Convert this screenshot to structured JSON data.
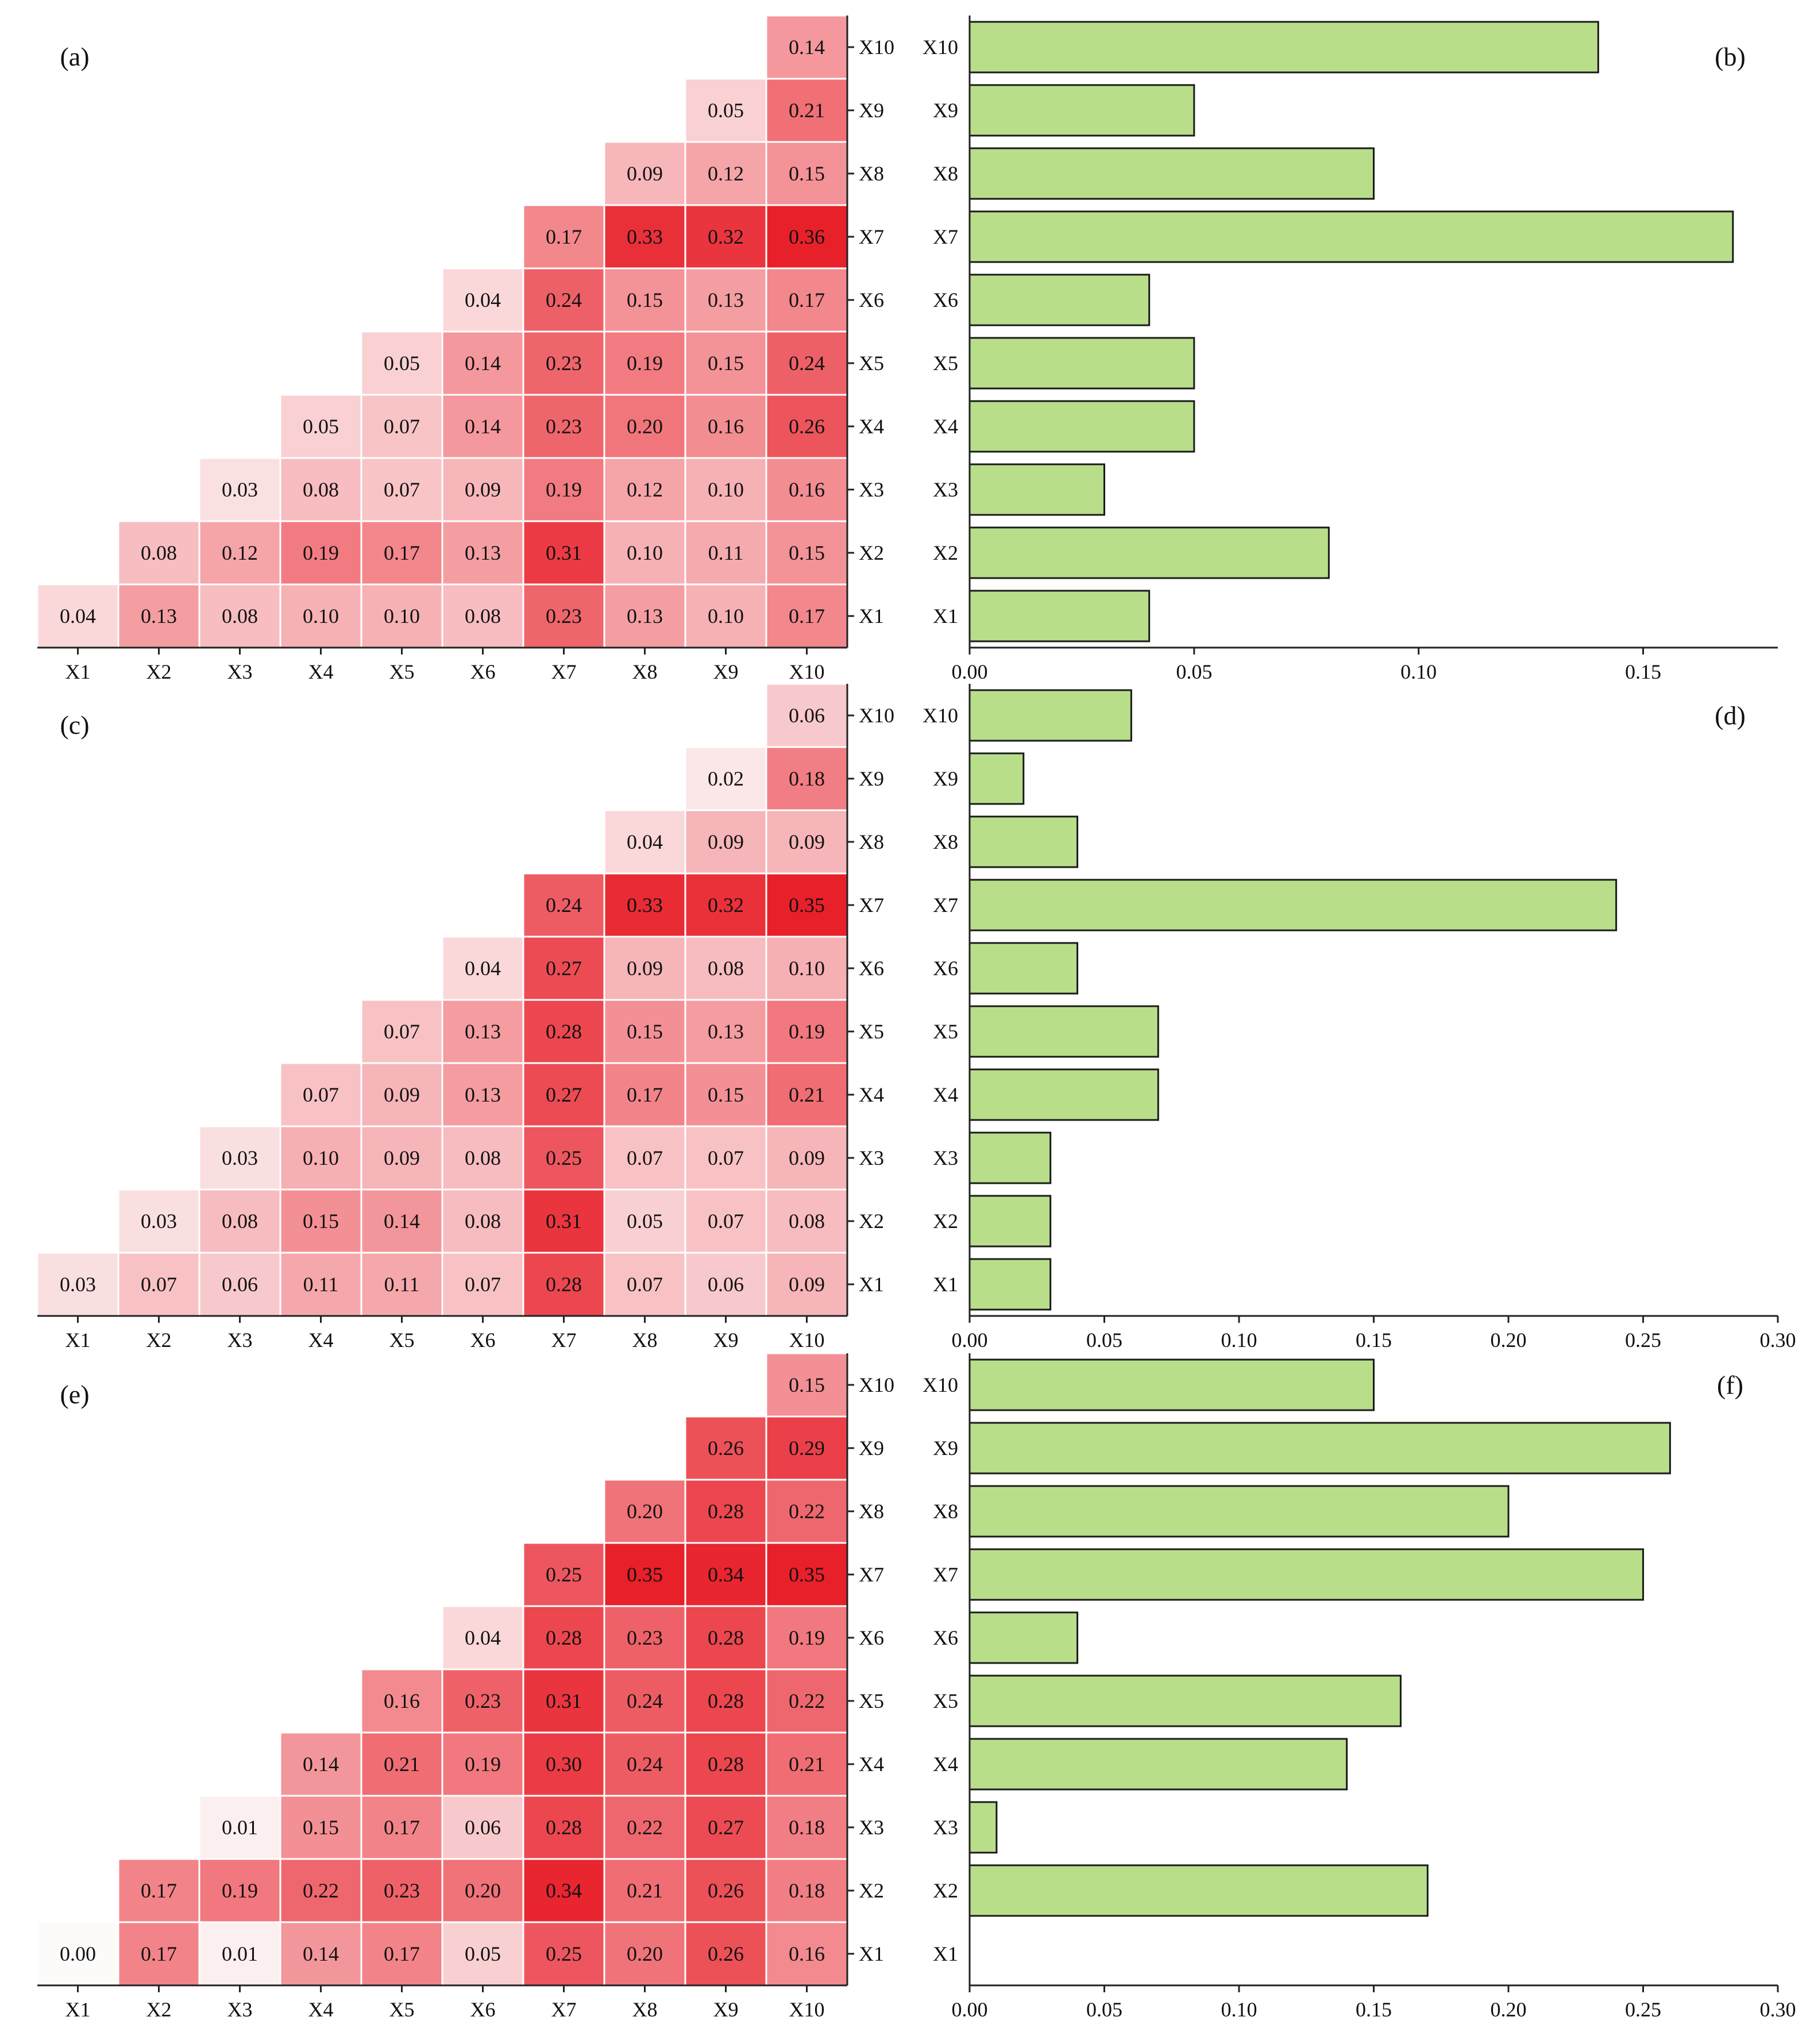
{
  "colors": {
    "heat_low": "#fdfafa",
    "heat_high": "#e8202a",
    "bar_fill": "#b8de8a",
    "bar_stroke": "#1a1a1a",
    "axis": "#222222",
    "cell_border": "#ffffff"
  },
  "chart_data": [
    {
      "type": "heatmap",
      "panel_label": "(a)",
      "x_categories": [
        "X1",
        "X2",
        "X3",
        "X4",
        "X5",
        "X6",
        "X7",
        "X8",
        "X9",
        "X10"
      ],
      "y_categories": [
        "X1",
        "X2",
        "X3",
        "X4",
        "X5",
        "X6",
        "X7",
        "X8",
        "X9",
        "X10"
      ],
      "matrix_note": "rows listed from X1 (bottom) to X10 (top); null = empty cell",
      "values": [
        [
          0.04,
          0.13,
          0.08,
          0.1,
          0.1,
          0.08,
          0.23,
          0.13,
          0.1,
          0.17
        ],
        [
          null,
          0.08,
          0.12,
          0.19,
          0.17,
          0.13,
          0.31,
          0.1,
          0.11,
          0.15
        ],
        [
          null,
          null,
          0.03,
          0.08,
          0.07,
          0.09,
          0.19,
          0.12,
          0.1,
          0.16
        ],
        [
          null,
          null,
          null,
          0.05,
          0.07,
          0.14,
          0.23,
          0.2,
          0.16,
          0.26
        ],
        [
          null,
          null,
          null,
          null,
          0.05,
          0.14,
          0.23,
          0.19,
          0.15,
          0.24
        ],
        [
          null,
          null,
          null,
          null,
          null,
          0.04,
          0.24,
          0.15,
          0.13,
          0.17
        ],
        [
          null,
          null,
          null,
          null,
          null,
          null,
          0.17,
          0.33,
          0.32,
          0.36
        ],
        [
          null,
          null,
          null,
          null,
          null,
          null,
          null,
          0.09,
          0.12,
          0.15
        ],
        [
          null,
          null,
          null,
          null,
          null,
          null,
          null,
          null,
          0.05,
          0.21
        ],
        [
          null,
          null,
          null,
          null,
          null,
          null,
          null,
          null,
          null,
          0.14
        ]
      ],
      "color_range": [
        0.0,
        0.36
      ]
    },
    {
      "type": "bar",
      "orientation": "horizontal",
      "panel_label": "(b)",
      "categories": [
        "X1",
        "X2",
        "X3",
        "X4",
        "X5",
        "X6",
        "X7",
        "X8",
        "X9",
        "X10"
      ],
      "values": [
        0.04,
        0.08,
        0.03,
        0.05,
        0.05,
        0.04,
        0.17,
        0.09,
        0.05,
        0.14
      ],
      "xlim": [
        0.0,
        0.18
      ],
      "x_ticks": [
        "0.00",
        "0.05",
        "0.10",
        "0.15"
      ],
      "x_tick_values": [
        0.0,
        0.05,
        0.1,
        0.15
      ]
    },
    {
      "type": "heatmap",
      "panel_label": "(c)",
      "x_categories": [
        "X1",
        "X2",
        "X3",
        "X4",
        "X5",
        "X6",
        "X7",
        "X8",
        "X9",
        "X10"
      ],
      "y_categories": [
        "X1",
        "X2",
        "X3",
        "X4",
        "X5",
        "X6",
        "X7",
        "X8",
        "X9",
        "X10"
      ],
      "matrix_note": "rows listed from X1 (bottom) to X10 (top); null = empty cell",
      "values": [
        [
          0.03,
          0.07,
          0.06,
          0.11,
          0.11,
          0.07,
          0.28,
          0.07,
          0.06,
          0.09
        ],
        [
          null,
          0.03,
          0.08,
          0.15,
          0.14,
          0.08,
          0.31,
          0.05,
          0.07,
          0.08
        ],
        [
          null,
          null,
          0.03,
          0.1,
          0.09,
          0.08,
          0.25,
          0.07,
          0.07,
          0.09
        ],
        [
          null,
          null,
          null,
          0.07,
          0.09,
          0.13,
          0.27,
          0.17,
          0.15,
          0.21
        ],
        [
          null,
          null,
          null,
          null,
          0.07,
          0.13,
          0.28,
          0.15,
          0.13,
          0.19
        ],
        [
          null,
          null,
          null,
          null,
          null,
          0.04,
          0.27,
          0.09,
          0.08,
          0.1
        ],
        [
          null,
          null,
          null,
          null,
          null,
          null,
          0.24,
          0.33,
          0.32,
          0.35
        ],
        [
          null,
          null,
          null,
          null,
          null,
          null,
          null,
          0.04,
          0.09,
          0.09
        ],
        [
          null,
          null,
          null,
          null,
          null,
          null,
          null,
          null,
          0.02,
          0.18
        ],
        [
          null,
          null,
          null,
          null,
          null,
          null,
          null,
          null,
          null,
          0.06
        ]
      ],
      "color_range": [
        0.0,
        0.35
      ]
    },
    {
      "type": "bar",
      "orientation": "horizontal",
      "panel_label": "(d)",
      "categories": [
        "X1",
        "X2",
        "X3",
        "X4",
        "X5",
        "X6",
        "X7",
        "X8",
        "X9",
        "X10"
      ],
      "values": [
        0.03,
        0.03,
        0.03,
        0.07,
        0.07,
        0.04,
        0.24,
        0.04,
        0.02,
        0.06
      ],
      "xlim": [
        0.0,
        0.3
      ],
      "x_ticks": [
        "0.00",
        "0.05",
        "0.10",
        "0.15",
        "0.20",
        "0.25",
        "0.30"
      ],
      "x_tick_values": [
        0.0,
        0.05,
        0.1,
        0.15,
        0.2,
        0.25,
        0.3
      ]
    },
    {
      "type": "heatmap",
      "panel_label": "(e)",
      "x_categories": [
        "X1",
        "X2",
        "X3",
        "X4",
        "X5",
        "X6",
        "X7",
        "X8",
        "X9",
        "X10"
      ],
      "y_categories": [
        "X1",
        "X2",
        "X3",
        "X4",
        "X5",
        "X6",
        "X7",
        "X8",
        "X9",
        "X10"
      ],
      "matrix_note": "rows listed from X1 (bottom) to X10 (top); null = empty cell",
      "values": [
        [
          0.0,
          0.17,
          0.01,
          0.14,
          0.17,
          0.05,
          0.25,
          0.2,
          0.26,
          0.16
        ],
        [
          null,
          0.17,
          0.19,
          0.22,
          0.23,
          0.2,
          0.34,
          0.21,
          0.26,
          0.18
        ],
        [
          null,
          null,
          0.01,
          0.15,
          0.17,
          0.06,
          0.28,
          0.22,
          0.27,
          0.18
        ],
        [
          null,
          null,
          null,
          0.14,
          0.21,
          0.19,
          0.3,
          0.24,
          0.28,
          0.21
        ],
        [
          null,
          null,
          null,
          null,
          0.16,
          0.23,
          0.31,
          0.24,
          0.28,
          0.22
        ],
        [
          null,
          null,
          null,
          null,
          null,
          0.04,
          0.28,
          0.23,
          0.28,
          0.19
        ],
        [
          null,
          null,
          null,
          null,
          null,
          null,
          0.25,
          0.35,
          0.34,
          0.35
        ],
        [
          null,
          null,
          null,
          null,
          null,
          null,
          null,
          0.2,
          0.28,
          0.22
        ],
        [
          null,
          null,
          null,
          null,
          null,
          null,
          null,
          null,
          0.26,
          0.29
        ],
        [
          null,
          null,
          null,
          null,
          null,
          null,
          null,
          null,
          null,
          0.15
        ]
      ],
      "color_range": [
        0.0,
        0.35
      ]
    },
    {
      "type": "bar",
      "orientation": "horizontal",
      "panel_label": "(f)",
      "categories": [
        "X1",
        "X2",
        "X3",
        "X4",
        "X5",
        "X6",
        "X7",
        "X8",
        "X9",
        "X10"
      ],
      "values": [
        0.0,
        0.17,
        0.01,
        0.14,
        0.16,
        0.04,
        0.25,
        0.2,
        0.26,
        0.15
      ],
      "xlim": [
        0.0,
        0.3
      ],
      "x_ticks": [
        "0.00",
        "0.05",
        "0.10",
        "0.15",
        "0.20",
        "0.25",
        "0.30"
      ],
      "x_tick_values": [
        0.0,
        0.05,
        0.1,
        0.15,
        0.2,
        0.25,
        0.3
      ]
    }
  ]
}
